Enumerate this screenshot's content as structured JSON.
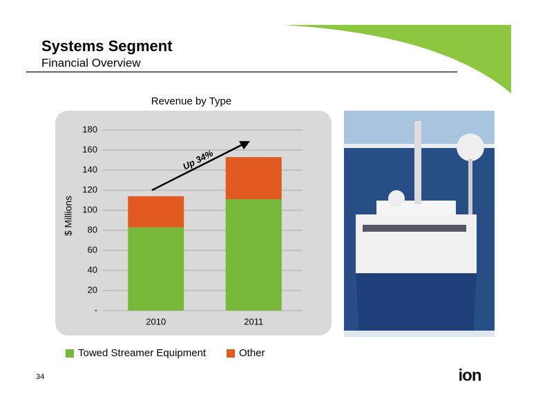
{
  "header": {
    "title": "Systems Segment",
    "subtitle": "Financial Overview"
  },
  "chart_data": {
    "type": "stacked_bar",
    "title": "Revenue by Type",
    "y_label": "$ Millions",
    "annotation": "Up 34%",
    "categories": [
      "2010",
      "2011"
    ],
    "series": [
      {
        "name": "Towed Streamer Equipment",
        "color": "#77b83a",
        "values": [
          83,
          111
        ]
      },
      {
        "name": "Other",
        "color": "#e05a22",
        "values": [
          31,
          42
        ]
      }
    ],
    "ylim": [
      0,
      180
    ],
    "yticks": [
      {
        "value": 0,
        "label": "-"
      },
      20,
      40,
      60,
      80,
      100,
      120,
      140,
      160,
      180
    ],
    "grid": true
  },
  "footer": {
    "page": "34",
    "logo": "ion"
  }
}
